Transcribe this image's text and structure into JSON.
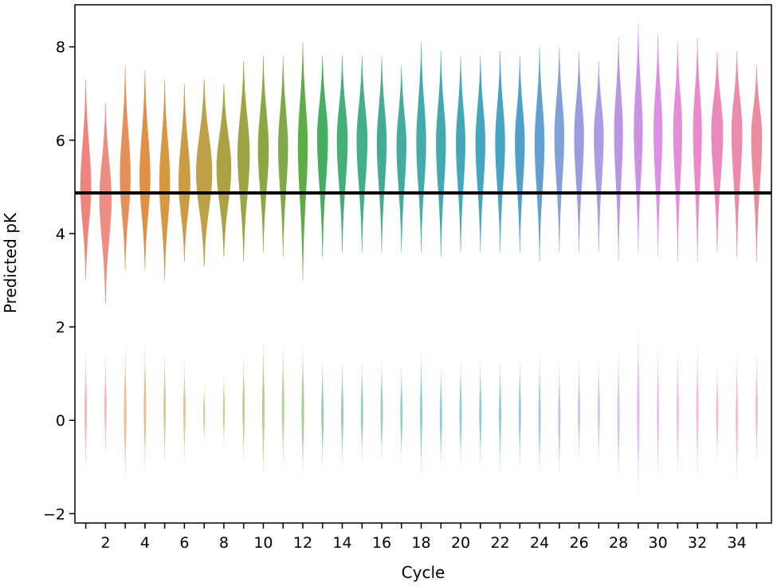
{
  "chart_data": {
    "type": "violin",
    "title": "",
    "xlabel": "Cycle",
    "ylabel": "Predicted pK",
    "categories": [
      1,
      2,
      3,
      4,
      5,
      6,
      7,
      8,
      9,
      10,
      11,
      12,
      13,
      14,
      15,
      16,
      17,
      18,
      19,
      20,
      21,
      22,
      23,
      24,
      25,
      26,
      27,
      28,
      29,
      30,
      31,
      32,
      33,
      34,
      35
    ],
    "x_tick_labels": [
      "2",
      "4",
      "6",
      "8",
      "10",
      "12",
      "14",
      "16",
      "18",
      "20",
      "22",
      "24",
      "26",
      "28",
      "30",
      "32",
      "34"
    ],
    "y_ticks": [
      -2,
      0,
      2,
      4,
      6,
      8
    ],
    "y_tick_labels": [
      "−2",
      "0",
      "2",
      "4",
      "6",
      "8"
    ],
    "ylim": [
      -2.2,
      8.9
    ],
    "grid": false,
    "reference_line": {
      "y": 4.87,
      "color": "#000000"
    },
    "upper_mode_center": [
      5.0,
      4.75,
      5.2,
      5.2,
      5.1,
      5.1,
      5.3,
      5.4,
      5.7,
      5.8,
      5.85,
      5.9,
      6.05,
      6.0,
      6.0,
      5.95,
      5.9,
      5.95,
      5.95,
      5.95,
      5.95,
      5.95,
      5.95,
      5.95,
      6.1,
      6.1,
      6.1,
      6.2,
      6.2,
      6.2,
      6.25,
      6.2,
      6.2,
      6.2,
      6.1
    ],
    "upper_range": [
      [
        3.0,
        7.3
      ],
      [
        2.5,
        6.8
      ],
      [
        3.2,
        7.6
      ],
      [
        3.2,
        7.5
      ],
      [
        3.0,
        7.3
      ],
      [
        3.4,
        7.2
      ],
      [
        3.3,
        7.3
      ],
      [
        3.5,
        7.2
      ],
      [
        3.4,
        7.7
      ],
      [
        3.6,
        7.8
      ],
      [
        3.5,
        7.8
      ],
      [
        3.0,
        8.1
      ],
      [
        3.5,
        7.8
      ],
      [
        3.6,
        7.8
      ],
      [
        3.6,
        7.8
      ],
      [
        3.6,
        7.8
      ],
      [
        3.6,
        7.6
      ],
      [
        3.6,
        8.1
      ],
      [
        3.5,
        7.9
      ],
      [
        3.6,
        7.8
      ],
      [
        3.6,
        7.8
      ],
      [
        3.6,
        7.9
      ],
      [
        3.6,
        7.8
      ],
      [
        3.4,
        8.0
      ],
      [
        3.6,
        8.0
      ],
      [
        3.6,
        7.9
      ],
      [
        3.6,
        7.7
      ],
      [
        3.4,
        8.2
      ],
      [
        3.6,
        8.5
      ],
      [
        3.5,
        8.3
      ],
      [
        3.4,
        8.1
      ],
      [
        3.4,
        8.2
      ],
      [
        3.6,
        7.9
      ],
      [
        3.5,
        7.9
      ],
      [
        3.4,
        7.6
      ]
    ],
    "lower_range": [
      [
        -1.1,
        1.5
      ],
      [
        -0.8,
        1.4
      ],
      [
        -1.3,
        1.6
      ],
      [
        -1.1,
        1.6
      ],
      [
        -1.0,
        1.5
      ],
      [
        -0.9,
        1.3
      ],
      [
        -0.5,
        0.8
      ],
      [
        -0.6,
        1.0
      ],
      [
        -0.9,
        1.4
      ],
      [
        -1.2,
        1.7
      ],
      [
        -1.0,
        1.6
      ],
      [
        -1.2,
        1.6
      ],
      [
        -1.0,
        1.3
      ],
      [
        -1.0,
        1.3
      ],
      [
        -0.9,
        1.3
      ],
      [
        -0.9,
        1.3
      ],
      [
        -0.9,
        1.2
      ],
      [
        -1.2,
        1.5
      ],
      [
        -1.0,
        1.2
      ],
      [
        -1.0,
        1.3
      ],
      [
        -1.0,
        1.3
      ],
      [
        -1.1,
        1.3
      ],
      [
        -1.0,
        1.3
      ],
      [
        -1.2,
        1.4
      ],
      [
        -1.2,
        1.3
      ],
      [
        -0.9,
        1.3
      ],
      [
        -0.9,
        1.3
      ],
      [
        -1.3,
        1.5
      ],
      [
        -1.6,
        2.0
      ],
      [
        -1.3,
        1.6
      ],
      [
        -1.2,
        1.5
      ],
      [
        -1.2,
        1.6
      ],
      [
        -0.9,
        1.2
      ],
      [
        -1.3,
        1.4
      ],
      [
        -0.9,
        1.4
      ]
    ],
    "upper_width": [
      0.55,
      0.62,
      0.55,
      0.55,
      0.55,
      0.6,
      0.82,
      0.75,
      0.62,
      0.55,
      0.5,
      0.5,
      0.55,
      0.55,
      0.55,
      0.5,
      0.5,
      0.5,
      0.5,
      0.48,
      0.5,
      0.5,
      0.5,
      0.5,
      0.5,
      0.5,
      0.5,
      0.45,
      0.45,
      0.45,
      0.45,
      0.45,
      0.6,
      0.55,
      0.55
    ],
    "lower_width": [
      0.12,
      0.12,
      0.14,
      0.13,
      0.12,
      0.12,
      0.1,
      0.1,
      0.12,
      0.13,
      0.12,
      0.13,
      0.12,
      0.12,
      0.12,
      0.12,
      0.12,
      0.12,
      0.12,
      0.12,
      0.12,
      0.12,
      0.12,
      0.12,
      0.12,
      0.12,
      0.12,
      0.12,
      0.14,
      0.12,
      0.12,
      0.12,
      0.12,
      0.12,
      0.12
    ],
    "colors": [
      "#f07c78",
      "#ec877c",
      "#e28b4f",
      "#dc8a3a",
      "#d49236",
      "#c8973a",
      "#b99b3e",
      "#a89d3b",
      "#979f3a",
      "#87a23b",
      "#76a53d",
      "#55a83d",
      "#3baa57",
      "#3aab70",
      "#39ab84",
      "#3aa890",
      "#3aa79c",
      "#39a6a6",
      "#38a4ad",
      "#38a2b5",
      "#39a0bb",
      "#3d9fc0",
      "#469cc6",
      "#5b9bd0",
      "#7c9ad6",
      "#9398dd",
      "#a596e2",
      "#b58fe3",
      "#c88ce2",
      "#da89e1",
      "#e586d6",
      "#ea84c8",
      "#ea83b8",
      "#ea84a8",
      "#ea8698"
    ]
  }
}
